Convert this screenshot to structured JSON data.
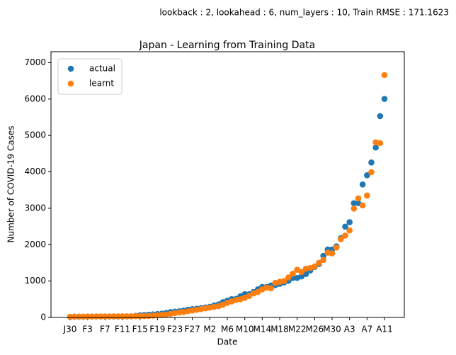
{
  "chart_data": {
    "type": "scatter",
    "suptitle": "lookback : 2, lookahead : 6, num_layers : 10, Train RMSE : 171.1623",
    "title": "Japan - Learning from Training Data",
    "xlabel": "Date",
    "ylabel": "Number of COVID-19 Cases",
    "categories": [
      "J30",
      null,
      null,
      null,
      "F3",
      null,
      null,
      null,
      "F7",
      null,
      null,
      null,
      "F11",
      null,
      null,
      null,
      "F15",
      null,
      null,
      null,
      "F19",
      null,
      null,
      null,
      "F23",
      null,
      null,
      null,
      "F27",
      null,
      null,
      null,
      "M2",
      null,
      null,
      null,
      "M6",
      null,
      null,
      null,
      "M10",
      null,
      null,
      null,
      "M14",
      null,
      null,
      null,
      "M18",
      null,
      null,
      null,
      "M22",
      null,
      null,
      null,
      "M26",
      null,
      null,
      null,
      "M30",
      null,
      null,
      null,
      "A3",
      null,
      null,
      null,
      "A7",
      null,
      null,
      null,
      "A11"
    ],
    "series": [
      {
        "name": "actual",
        "color": "#1f77b4",
        "values": [
          15,
          20,
          20,
          20,
          22,
          22,
          25,
          25,
          25,
          26,
          26,
          26,
          28,
          28,
          29,
          43,
          59,
          66,
          74,
          84,
          94,
          105,
          122,
          147,
          159,
          170,
          189,
          214,
          228,
          241,
          256,
          274,
          293,
          331,
          360,
          420,
          461,
          502,
          511,
          581,
          639,
          639,
          701,
          773,
          839,
          839,
          878,
          889,
          924,
          963,
          1007,
          1086,
          1086,
          1128,
          1193,
          1291,
          1387,
          1468,
          1693,
          1866,
          1866,
          1953,
          2178,
          2495,
          2617,
          3139,
          3139,
          3654,
          3906,
          4257,
          4667,
          5530,
          6005
        ]
      },
      {
        "name": "learnt",
        "color": "#ff7f0e",
        "values": [
          18,
          22,
          24,
          24,
          25,
          26,
          27,
          28,
          28,
          29,
          30,
          30,
          31,
          32,
          33,
          34,
          36,
          38,
          40,
          50,
          60,
          70,
          80,
          100,
          120,
          140,
          150,
          170,
          190,
          210,
          230,
          250,
          270,
          290,
          310,
          350,
          400,
          440,
          480,
          500,
          540,
          590,
          660,
          700,
          770,
          820,
          800,
          950,
          980,
          1000,
          1100,
          1200,
          1310,
          1250,
          1340,
          1360,
          1400,
          1500,
          1580,
          1780,
          1760,
          1920,
          2150,
          2250,
          2390,
          2990,
          3270,
          3080,
          3350,
          3990,
          4810,
          4790,
          6660
        ]
      }
    ],
    "ylim": [
      0,
      7300
    ],
    "yticks": [
      0,
      1000,
      2000,
      3000,
      4000,
      5000,
      6000,
      7000
    ],
    "legend": "upper left"
  }
}
